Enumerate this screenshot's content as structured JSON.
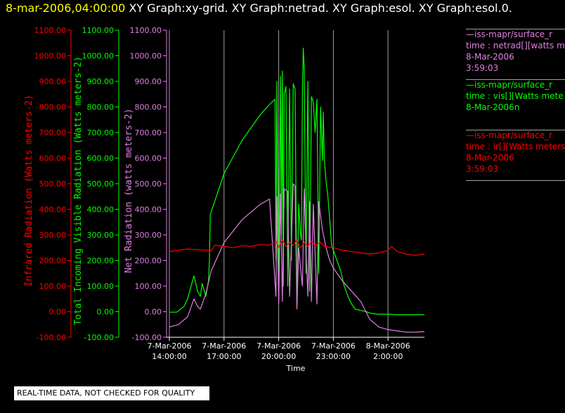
{
  "header": {
    "timestamp": "8-mar-2006,04:00:00",
    "graph_titles": "XY Graph:xy-grid.  XY Graph:netrad.  XY Graph:esol.  XY Graph:esol.0."
  },
  "colors": {
    "background": "#000000",
    "net_radiation": "#e080e0",
    "visible_radiation": "#00ff00",
    "infrared_radiation": "#ff0000",
    "grid": "#a0a0a0",
    "axis": "#ffffff",
    "timestamp": "#ffff00"
  },
  "legend": [
    {
      "name": "netrad",
      "color": "#e080e0",
      "lines": [
        "—iss-mapr/surface_r",
        "time : netrad[][watts m",
        "8-Mar-2006",
        "3:59:03"
      ]
    },
    {
      "name": "vis",
      "color": "#00ff00",
      "lines": [
        "—iss-mapr/surface_r",
        "time : vis[][Watts mete",
        "8-Mar-2006n"
      ]
    },
    {
      "name": "ir",
      "color": "#ff0000",
      "lines": [
        "—iss-mapr/surface_r",
        "time : ir[][Watts meters",
        "8-Mar-2006",
        "3:59:03"
      ]
    }
  ],
  "footer": {
    "quality_note": "REAL-TIME DATA, NOT CHECKED FOR QUALITY"
  },
  "chart_data": {
    "type": "line",
    "title": "",
    "xlabel": "Time",
    "x_ticks": [
      {
        "line1": "7-Mar-2006",
        "line2": "14:00:00",
        "hour": 0
      },
      {
        "line1": "7-Mar-2006",
        "line2": "17:00:00",
        "hour": 3
      },
      {
        "line1": "7-Mar-2006",
        "line2": "20:00:00",
        "hour": 6
      },
      {
        "line1": "7-Mar-2006",
        "line2": "23:00:00",
        "hour": 9
      },
      {
        "line1": "8-Mar-2006",
        "line2": "2:00:00",
        "hour": 12
      }
    ],
    "xlim_hours_from_7mar_1400": [
      0,
      14
    ],
    "grid": true,
    "y_axes": [
      {
        "id": "ir",
        "label": "Infrared Radiation (Watts meters-2)",
        "color": "#ff0000",
        "ylim": [
          -100,
          1100
        ],
        "ticks": [
          "-100.00",
          "0.00",
          "100.00",
          "200.00",
          "300.00",
          "400.00",
          "500.00",
          "600.00",
          "700.00",
          "800.00",
          "900.00",
          "1000.00",
          "1100.00"
        ]
      },
      {
        "id": "vis",
        "label": "Total Incoming Visible Radiation (Watts meters-2)",
        "color": "#00ff00",
        "ylim": [
          -100,
          1100
        ],
        "ticks": [
          "-100.00",
          "0.00",
          "100.00",
          "200.00",
          "300.00",
          "400.00",
          "500.00",
          "600.00",
          "700.00",
          "800.00",
          "900.00",
          "1000.00",
          "1100.00"
        ]
      },
      {
        "id": "net",
        "label": "Net Radiation (watts meters-2)",
        "color": "#e080e0",
        "ylim": [
          -100,
          1100
        ],
        "ticks": [
          "-100.00",
          "0.00",
          "100.00",
          "200.00",
          "300.00",
          "400.00",
          "500.00",
          "600.00",
          "700.00",
          "800.00",
          "900.00",
          "1000.00",
          "1100.00"
        ]
      }
    ],
    "series": [
      {
        "name": "vis",
        "color": "#00ff00",
        "x_hours": [
          0,
          0.4,
          0.8,
          1.0,
          1.35,
          1.55,
          1.7,
          1.8,
          2.0,
          2.15,
          2.2,
          2.25,
          2.3,
          3.0,
          4.0,
          5.0,
          5.5,
          5.8,
          5.85,
          5.9,
          6.0,
          6.1,
          6.15,
          6.2,
          6.25,
          6.3,
          6.4,
          6.5,
          6.6,
          6.7,
          6.8,
          6.9,
          7.0,
          7.1,
          7.2,
          7.25,
          7.3,
          7.35,
          7.4,
          7.5,
          7.6,
          7.7,
          7.8,
          7.9,
          8.0,
          8.1,
          8.2,
          8.3,
          8.4,
          8.45,
          8.5,
          8.6,
          8.7,
          8.8,
          8.9,
          9.0,
          9.2,
          9.4,
          9.6,
          9.8,
          10.0,
          10.2,
          10.5,
          10.8,
          11.0,
          11.2,
          11.5,
          12.0,
          12.5,
          13.0,
          13.5,
          14.0
        ],
        "values": [
          -2,
          -2,
          20,
          50,
          140,
          80,
          60,
          110,
          60,
          120,
          200,
          380,
          390,
          540,
          670,
          770,
          810,
          830,
          200,
          900,
          50,
          920,
          300,
          940,
          100,
          850,
          880,
          100,
          870,
          200,
          890,
          870,
          20,
          420,
          300,
          280,
          850,
          1030,
          950,
          150,
          900,
          80,
          840,
          820,
          700,
          830,
          150,
          800,
          590,
          780,
          600,
          510,
          450,
          360,
          260,
          240,
          200,
          160,
          100,
          60,
          30,
          10,
          5,
          0,
          -5,
          -8,
          -10,
          -10,
          -12,
          -12,
          -12,
          -12
        ]
      },
      {
        "name": "netrad",
        "color": "#e080e0",
        "x_hours": [
          0,
          0.5,
          1.0,
          1.35,
          1.55,
          1.7,
          2.0,
          2.3,
          3.0,
          4.0,
          5.0,
          5.5,
          5.85,
          5.9,
          6.0,
          6.1,
          6.2,
          6.3,
          6.5,
          6.6,
          6.8,
          6.9,
          7.0,
          7.1,
          7.2,
          7.3,
          7.4,
          7.5,
          7.6,
          7.7,
          7.8,
          7.9,
          8.1,
          8.2,
          8.4,
          8.6,
          8.8,
          9.0,
          9.5,
          10.0,
          10.5,
          11.0,
          11.5,
          12.0,
          12.5,
          13.0,
          13.5,
          14.0
        ],
        "values": [
          -60,
          -50,
          -20,
          50,
          20,
          10,
          70,
          160,
          270,
          360,
          420,
          440,
          60,
          450,
          30,
          460,
          40,
          480,
          470,
          60,
          500,
          490,
          10,
          250,
          170,
          100,
          480,
          240,
          60,
          430,
          40,
          420,
          30,
          430,
          320,
          250,
          200,
          170,
          120,
          80,
          40,
          -30,
          -60,
          -70,
          -75,
          -80,
          -80,
          -78
        ]
      },
      {
        "name": "ir",
        "color": "#ff0000",
        "x_hours": [
          0,
          0.5,
          1.0,
          1.5,
          2.0,
          2.3,
          2.5,
          3.0,
          3.5,
          4.0,
          4.5,
          5.0,
          5.5,
          5.85,
          6.0,
          6.2,
          6.4,
          6.6,
          6.8,
          7.0,
          7.2,
          7.4,
          7.6,
          7.8,
          8.0,
          8.3,
          8.5,
          9.0,
          9.5,
          10.0,
          10.5,
          11.0,
          11.5,
          12.0,
          12.2,
          12.5,
          13.0,
          13.5,
          14.0
        ],
        "values": [
          235,
          240,
          245,
          242,
          240,
          238,
          260,
          255,
          250,
          258,
          255,
          262,
          260,
          275,
          250,
          280,
          255,
          270,
          260,
          280,
          250,
          270,
          255,
          275,
          260,
          270,
          255,
          250,
          240,
          235,
          230,
          225,
          230,
          240,
          255,
          235,
          225,
          220,
          225
        ]
      }
    ]
  }
}
